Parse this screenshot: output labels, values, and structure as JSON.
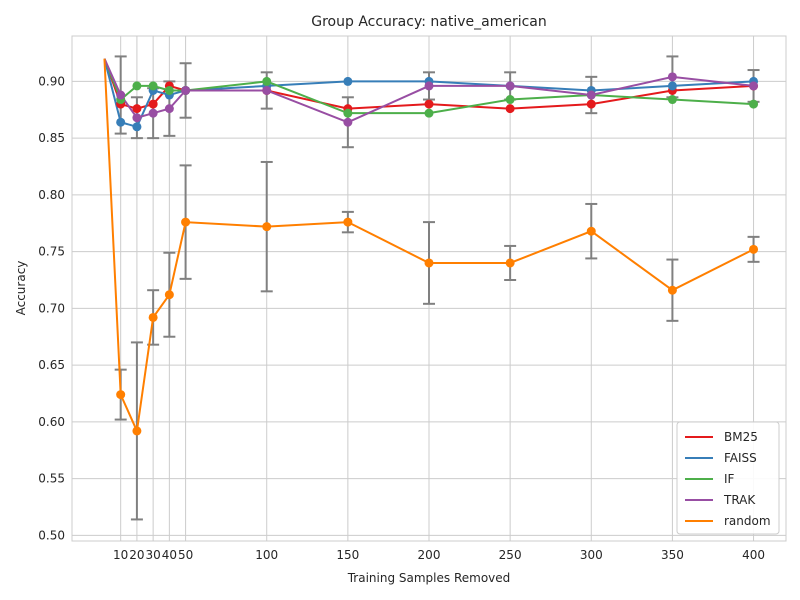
{
  "chart_data": {
    "type": "line",
    "title": "Group Accuracy: native_american",
    "xlabel": "Training Samples Removed",
    "ylabel": "Accuracy",
    "x": [
      0,
      10,
      20,
      30,
      40,
      50,
      100,
      150,
      200,
      250,
      300,
      350,
      400
    ],
    "xticks": [
      10,
      20,
      30,
      40,
      50,
      100,
      150,
      200,
      250,
      300,
      350,
      400
    ],
    "xlim": [
      -20,
      420
    ],
    "yticks": [
      0.5,
      0.55,
      0.6,
      0.65,
      0.7,
      0.75,
      0.8,
      0.85,
      0.9
    ],
    "ytick_labels": [
      "0.50",
      "0.55",
      "0.60",
      "0.65",
      "0.70",
      "0.75",
      "0.80",
      "0.85",
      "0.90"
    ],
    "ylim": [
      0.495,
      0.94
    ],
    "grid": true,
    "legend_position": "lower-right",
    "series": [
      {
        "name": "BM25",
        "color": "#e41a1c",
        "values": [
          0.92,
          0.88,
          0.876,
          0.88,
          0.896,
          0.892,
          0.892,
          0.876,
          0.88,
          0.876,
          0.88,
          0.892,
          0.896
        ],
        "err": [
          0,
          0,
          0,
          0,
          0,
          0,
          0,
          0,
          0,
          0,
          0,
          0,
          0
        ]
      },
      {
        "name": "FAISS",
        "color": "#377eb8",
        "values": [
          0.92,
          0.864,
          0.86,
          0.892,
          0.888,
          0.892,
          0.896,
          0.9,
          0.9,
          0.896,
          0.892,
          0.896,
          0.9
        ],
        "err": [
          0,
          0,
          0,
          0,
          0,
          0,
          0,
          0,
          0,
          0,
          0,
          0,
          0
        ]
      },
      {
        "name": "IF",
        "color": "#4daf4a",
        "values": [
          0.92,
          0.884,
          0.896,
          0.896,
          0.892,
          0.892,
          0.9,
          0.872,
          0.872,
          0.884,
          0.888,
          0.884,
          0.88
        ],
        "err": [
          0,
          0,
          0,
          0,
          0,
          0,
          0,
          0,
          0,
          0,
          0,
          0,
          0
        ]
      },
      {
        "name": "TRAK",
        "color": "#984ea3",
        "values": [
          0.92,
          0.888,
          0.868,
          0.872,
          0.876,
          0.892,
          0.892,
          0.864,
          0.896,
          0.896,
          0.888,
          0.904,
          0.896
        ],
        "err": [
          0,
          0.034,
          0.018,
          0.022,
          0.024,
          0.024,
          0.016,
          0.022,
          0.012,
          0.012,
          0.016,
          0.018,
          0.014
        ]
      },
      {
        "name": "random",
        "color": "#ff7f00",
        "values": [
          0.92,
          0.624,
          0.592,
          0.692,
          0.712,
          0.776,
          0.772,
          0.776,
          0.74,
          0.74,
          0.768,
          0.716,
          0.752
        ],
        "err": [
          0,
          0.022,
          0.078,
          0.024,
          0.037,
          0.05,
          0.057,
          0.009,
          0.036,
          0.015,
          0.024,
          0.027,
          0.011
        ]
      }
    ]
  }
}
